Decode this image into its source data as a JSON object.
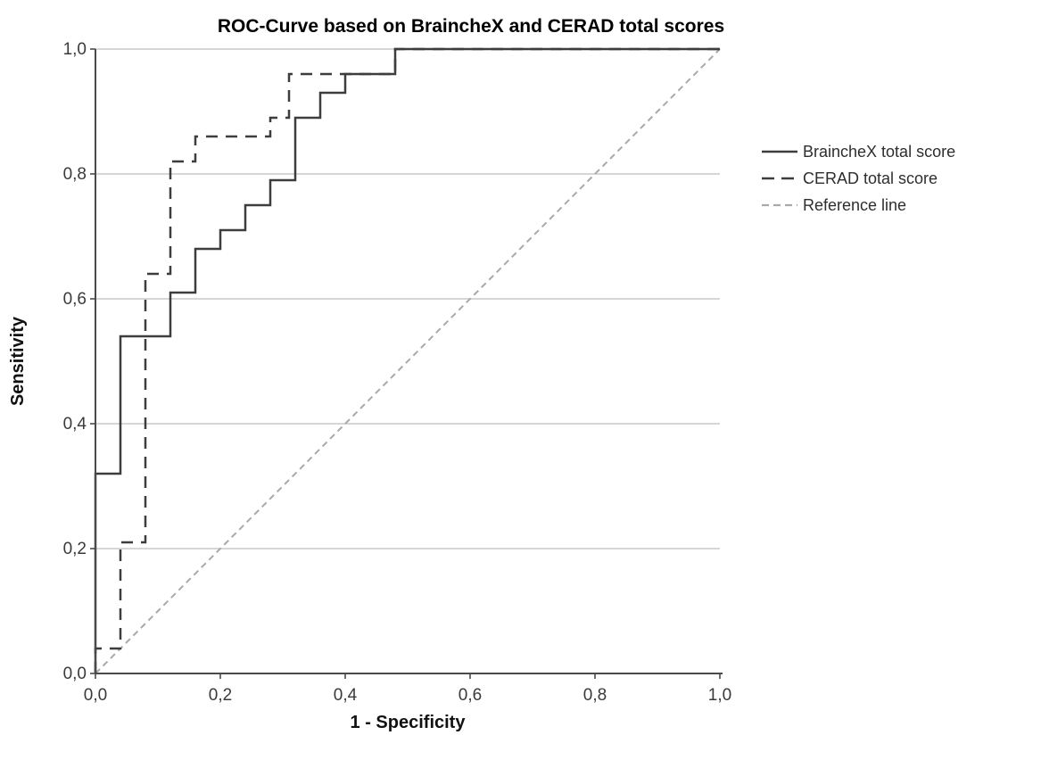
{
  "chart_data": {
    "type": "line",
    "subtype": "roc-step-curves",
    "title": "ROC-Curve based on BraincheX and CERAD total scores",
    "x_axis": {
      "label": "1 - Specificity",
      "tick_labels": [
        "0,0",
        "0,2",
        "0,4",
        "0,6",
        "0,8",
        "1,0"
      ],
      "tick_values": [
        0,
        0.2,
        0.4,
        0.6,
        0.8,
        1.0
      ],
      "range": [
        0,
        1
      ]
    },
    "y_axis": {
      "label": "Sensitivity",
      "tick_labels": [
        "0,0",
        "0,2",
        "0,4",
        "0,6",
        "0,8",
        "1,0"
      ],
      "tick_values": [
        0,
        0.2,
        0.4,
        0.6,
        0.8,
        1.0
      ],
      "range": [
        0,
        1
      ]
    },
    "grid": "horizontal-only",
    "legend_position": "right",
    "colors": {
      "curves": "#3d3d3d",
      "reference": "#a9a9a9",
      "axis": "#4a4a4a",
      "gridlines": "#c9c9c9",
      "tick_text": "#3a3a3a"
    },
    "series": [
      {
        "id": "brainchex-curve",
        "name": "BraincheX total score",
        "style": "solid",
        "color": "#3d3d3d",
        "points": [
          [
            0,
            0
          ],
          [
            0,
            0.32
          ],
          [
            0.04,
            0.32
          ],
          [
            0.04,
            0.54
          ],
          [
            0.12,
            0.54
          ],
          [
            0.12,
            0.61
          ],
          [
            0.16,
            0.61
          ],
          [
            0.16,
            0.68
          ],
          [
            0.2,
            0.68
          ],
          [
            0.2,
            0.71
          ],
          [
            0.24,
            0.71
          ],
          [
            0.24,
            0.75
          ],
          [
            0.28,
            0.75
          ],
          [
            0.28,
            0.79
          ],
          [
            0.32,
            0.79
          ],
          [
            0.32,
            0.89
          ],
          [
            0.36,
            0.89
          ],
          [
            0.36,
            0.93
          ],
          [
            0.4,
            0.93
          ],
          [
            0.4,
            0.96
          ],
          [
            0.48,
            0.96
          ],
          [
            0.48,
            1
          ],
          [
            1,
            1
          ]
        ]
      },
      {
        "id": "cerad-curve",
        "name": "CERAD total score",
        "style": "dashed",
        "color": "#3d3d3d",
        "points": [
          [
            0,
            0
          ],
          [
            0,
            0.04
          ],
          [
            0.04,
            0.04
          ],
          [
            0.04,
            0.21
          ],
          [
            0.08,
            0.21
          ],
          [
            0.08,
            0.64
          ],
          [
            0.12,
            0.64
          ],
          [
            0.12,
            0.82
          ],
          [
            0.16,
            0.82
          ],
          [
            0.16,
            0.86
          ],
          [
            0.28,
            0.86
          ],
          [
            0.28,
            0.89
          ],
          [
            0.31,
            0.89
          ],
          [
            0.31,
            0.96
          ],
          [
            0.48,
            0.96
          ],
          [
            0.48,
            1
          ],
          [
            1,
            1
          ]
        ]
      },
      {
        "id": "reference-line",
        "name": "Reference line",
        "style": "dashed-short",
        "color": "#a9a9a9",
        "points": [
          [
            0,
            0
          ],
          [
            1,
            1
          ]
        ]
      }
    ]
  }
}
